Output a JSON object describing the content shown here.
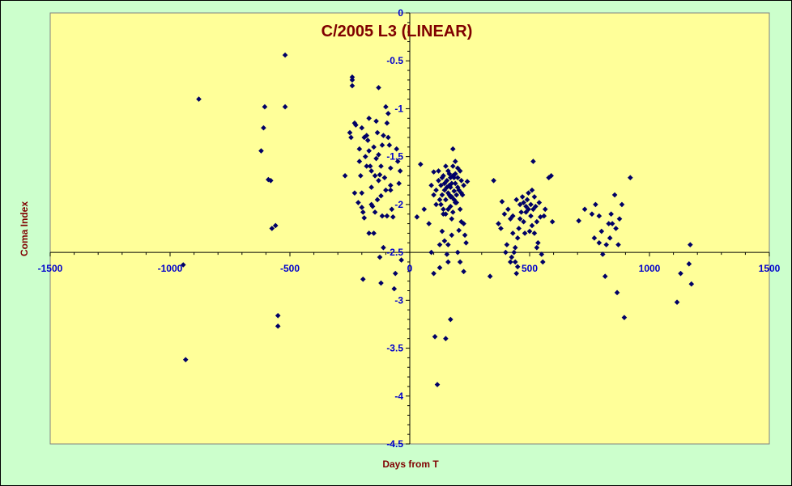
{
  "chart_data": {
    "type": "scatter",
    "title": "C/2005 L3 (LINEAR)",
    "xlabel": "Days from T",
    "ylabel": "Coma Index",
    "xlim": [
      -1500,
      1500
    ],
    "ylim": [
      -4.5,
      0
    ],
    "xticks": [
      -1500,
      -1000,
      -500,
      0,
      500,
      1000,
      1500
    ],
    "xtick_labels": [
      "-1500",
      "-1000",
      "-500",
      "0",
      "500",
      "1000",
      "1500"
    ],
    "yticks": [
      0,
      -0.5,
      -1,
      -1.5,
      -2,
      -2.5,
      -3,
      -3.5,
      -4,
      -4.5
    ],
    "ytick_labels": [
      "0",
      "-0.5",
      "-1",
      "-1.5",
      "-2",
      "-2.5",
      "-3",
      "-3.5",
      "-4",
      "-4.5"
    ],
    "grid": false,
    "legend": "none",
    "colors": {
      "plot_bg": "#ffff99",
      "page_bg": "#ccffcc",
      "marker": "#000066",
      "title": "#800000",
      "ticks": "#0000cc"
    },
    "marker": "diamond",
    "series": [
      {
        "points": [
          [
            -935,
            -3.62
          ],
          [
            -945,
            -2.63
          ],
          [
            -880,
            -0.9
          ],
          [
            -620,
            -1.44
          ],
          [
            -610,
            -1.2
          ],
          [
            -605,
            -0.98
          ],
          [
            -590,
            -1.74
          ],
          [
            -580,
            -1.75
          ],
          [
            -575,
            -2.25
          ],
          [
            -560,
            -2.22
          ],
          [
            -550,
            -3.16
          ],
          [
            -550,
            -3.27
          ],
          [
            -520,
            -0.44
          ],
          [
            -520,
            -0.98
          ],
          [
            -240,
            -0.67
          ],
          [
            -240,
            -0.7
          ],
          [
            -240,
            -0.76
          ],
          [
            -250,
            -1.25
          ],
          [
            -245,
            -1.3
          ],
          [
            -230,
            -1.15
          ],
          [
            -225,
            -1.17
          ],
          [
            -210,
            -1.42
          ],
          [
            -210,
            -1.55
          ],
          [
            -205,
            -1.7
          ],
          [
            -200,
            -1.88
          ],
          [
            -200,
            -2.03
          ],
          [
            -195,
            -2.08
          ],
          [
            -190,
            -2.14
          ],
          [
            -185,
            -1.5
          ],
          [
            -180,
            -1.28
          ],
          [
            -175,
            -1.33
          ],
          [
            -170,
            -1.44
          ],
          [
            -165,
            -1.6
          ],
          [
            -160,
            -1.82
          ],
          [
            -155,
            -2.02
          ],
          [
            -150,
            -2.3
          ],
          [
            -145,
            -2.08
          ],
          [
            -140,
            -1.13
          ],
          [
            -135,
            -1.25
          ],
          [
            -130,
            -1.48
          ],
          [
            -125,
            -1.69
          ],
          [
            -120,
            -1.91
          ],
          [
            -115,
            -2.12
          ],
          [
            -110,
            -2.45
          ],
          [
            -100,
            -0.98
          ],
          [
            -95,
            -1.15
          ],
          [
            -90,
            -1.3
          ],
          [
            -85,
            -1.38
          ],
          [
            -80,
            -1.62
          ],
          [
            -80,
            -1.85
          ],
          [
            -75,
            -2.05
          ],
          [
            -70,
            -2.13
          ],
          [
            -65,
            -2.88
          ],
          [
            -60,
            -2.72
          ],
          [
            -55,
            -1.42
          ],
          [
            -50,
            -1.55
          ],
          [
            -45,
            -1.78
          ],
          [
            -40,
            -1.65
          ],
          [
            -35,
            -2.58
          ],
          [
            -200,
            -1.2
          ],
          [
            -180,
            -1.6
          ],
          [
            -160,
            -1.65
          ],
          [
            -150,
            -1.4
          ],
          [
            -140,
            -1.52
          ],
          [
            -130,
            -1.75
          ],
          [
            -115,
            -1.38
          ],
          [
            -105,
            -1.72
          ],
          [
            -95,
            -2.12
          ],
          [
            -90,
            -1.05
          ],
          [
            -170,
            -2.3
          ],
          [
            -215,
            -1.98
          ],
          [
            -230,
            -1.88
          ],
          [
            -130,
            -0.78
          ],
          [
            -125,
            -2.55
          ],
          [
            -195,
            -2.78
          ],
          [
            -120,
            -2.82
          ],
          [
            -270,
            -1.7
          ],
          [
            -190,
            -1.3
          ],
          [
            -170,
            -1.1
          ],
          [
            -145,
            -1.7
          ],
          [
            -135,
            -1.95
          ],
          [
            -110,
            -1.28
          ],
          [
            -100,
            -1.85
          ],
          [
            -160,
            -2.0
          ],
          [
            -120,
            -1.6
          ],
          [
            -80,
            -1.8
          ],
          [
            30,
            -2.13
          ],
          [
            45,
            -1.58
          ],
          [
            80,
            -2.2
          ],
          [
            90,
            -2.5
          ],
          [
            100,
            -1.66
          ],
          [
            100,
            -2.72
          ],
          [
            105,
            -3.38
          ],
          [
            115,
            -3.88
          ],
          [
            125,
            -2.66
          ],
          [
            130,
            -2.0
          ],
          [
            135,
            -2.28
          ],
          [
            140,
            -2.1
          ],
          [
            145,
            -2.38
          ],
          [
            150,
            -3.4
          ],
          [
            155,
            -2.52
          ],
          [
            160,
            -2.6
          ],
          [
            170,
            -3.2
          ],
          [
            175,
            -2.32
          ],
          [
            200,
            -2.5
          ],
          [
            205,
            -2.27
          ],
          [
            210,
            -2.6
          ],
          [
            215,
            -2.18
          ],
          [
            225,
            -2.7
          ],
          [
            230,
            -2.32
          ],
          [
            180,
            -1.42
          ],
          [
            110,
            -1.85
          ],
          [
            120,
            -1.75
          ],
          [
            125,
            -1.95
          ],
          [
            130,
            -1.8
          ],
          [
            135,
            -1.9
          ],
          [
            140,
            -1.7
          ],
          [
            145,
            -1.85
          ],
          [
            150,
            -1.95
          ],
          [
            155,
            -1.75
          ],
          [
            160,
            -1.88
          ],
          [
            165,
            -1.68
          ],
          [
            170,
            -1.82
          ],
          [
            175,
            -1.92
          ],
          [
            180,
            -1.7
          ],
          [
            185,
            -1.86
          ],
          [
            190,
            -1.78
          ],
          [
            195,
            -1.98
          ],
          [
            200,
            -1.72
          ],
          [
            205,
            -1.85
          ],
          [
            210,
            -1.65
          ],
          [
            215,
            -1.75
          ],
          [
            220,
            -1.9
          ],
          [
            225,
            -1.8
          ],
          [
            150,
            -1.6
          ],
          [
            160,
            -1.65
          ],
          [
            170,
            -1.72
          ],
          [
            180,
            -1.6
          ],
          [
            190,
            -1.68
          ],
          [
            200,
            -1.62
          ],
          [
            170,
            -2.02
          ],
          [
            180,
            -2.08
          ],
          [
            190,
            -1.98
          ],
          [
            160,
            -2.05
          ],
          [
            150,
            -2.1
          ],
          [
            140,
            -2.05
          ],
          [
            185,
            -1.95
          ],
          [
            195,
            -1.9
          ],
          [
            175,
            -1.78
          ],
          [
            165,
            -1.9
          ],
          [
            155,
            -1.82
          ],
          [
            145,
            -1.78
          ],
          [
            135,
            -1.72
          ],
          [
            175,
            -2.15
          ],
          [
            210,
            -2.05
          ],
          [
            225,
            -2.2
          ],
          [
            240,
            -1.76
          ],
          [
            120,
            -1.65
          ],
          [
            110,
            -2.0
          ],
          [
            100,
            -1.9
          ],
          [
            90,
            -1.8
          ],
          [
            60,
            -2.05
          ],
          [
            235,
            -2.4
          ],
          [
            125,
            -2.42
          ],
          [
            160,
            -2.42
          ],
          [
            190,
            -1.55
          ],
          [
            200,
            -1.82
          ],
          [
            215,
            -1.88
          ],
          [
            185,
            -1.72
          ],
          [
            170,
            -1.92
          ],
          [
            165,
            -1.8
          ],
          [
            335,
            -2.75
          ],
          [
            370,
            -2.2
          ],
          [
            385,
            -1.97
          ],
          [
            395,
            -2.1
          ],
          [
            405,
            -2.42
          ],
          [
            410,
            -2.05
          ],
          [
            420,
            -2.15
          ],
          [
            425,
            -2.55
          ],
          [
            430,
            -2.3
          ],
          [
            435,
            -2.5
          ],
          [
            440,
            -2.6
          ],
          [
            445,
            -2.72
          ],
          [
            450,
            -2.35
          ],
          [
            455,
            -2.25
          ],
          [
            460,
            -2.0
          ],
          [
            465,
            -2.08
          ],
          [
            470,
            -1.92
          ],
          [
            475,
            -2.18
          ],
          [
            480,
            -2.3
          ],
          [
            485,
            -2.02
          ],
          [
            490,
            -1.95
          ],
          [
            495,
            -2.05
          ],
          [
            500,
            -2.28
          ],
          [
            505,
            -2.12
          ],
          [
            510,
            -1.85
          ],
          [
            515,
            -1.55
          ],
          [
            520,
            -1.92
          ],
          [
            525,
            -2.02
          ],
          [
            530,
            -2.18
          ],
          [
            535,
            -2.4
          ],
          [
            540,
            -1.98
          ],
          [
            545,
            -2.13
          ],
          [
            550,
            -2.52
          ],
          [
            555,
            -2.6
          ],
          [
            560,
            -2.12
          ],
          [
            565,
            -2.05
          ],
          [
            580,
            -1.72
          ],
          [
            590,
            -1.7
          ],
          [
            595,
            -2.18
          ],
          [
            475,
            -1.98
          ],
          [
            485,
            -2.08
          ],
          [
            495,
            -1.88
          ],
          [
            505,
            -2.0
          ],
          [
            515,
            -2.05
          ],
          [
            460,
            -2.15
          ],
          [
            445,
            -1.95
          ],
          [
            430,
            -2.12
          ],
          [
            350,
            -1.75
          ],
          [
            380,
            -2.25
          ],
          [
            400,
            -2.5
          ],
          [
            420,
            -2.6
          ],
          [
            440,
            -2.45
          ],
          [
            450,
            -2.65
          ],
          [
            510,
            -2.22
          ],
          [
            520,
            -2.3
          ],
          [
            530,
            -2.45
          ],
          [
            705,
            -2.17
          ],
          [
            730,
            -2.05
          ],
          [
            760,
            -2.1
          ],
          [
            770,
            -2.35
          ],
          [
            775,
            -2.0
          ],
          [
            790,
            -2.12
          ],
          [
            800,
            -2.28
          ],
          [
            805,
            -2.52
          ],
          [
            815,
            -2.75
          ],
          [
            820,
            -2.42
          ],
          [
            830,
            -2.2
          ],
          [
            840,
            -2.1
          ],
          [
            845,
            -2.2
          ],
          [
            855,
            -1.9
          ],
          [
            860,
            -2.25
          ],
          [
            865,
            -2.92
          ],
          [
            870,
            -2.42
          ],
          [
            875,
            -2.15
          ],
          [
            885,
            -2.0
          ],
          [
            895,
            -3.18
          ],
          [
            920,
            -1.72
          ],
          [
            790,
            -2.4
          ],
          [
            835,
            -2.35
          ],
          [
            1115,
            -3.02
          ],
          [
            1130,
            -2.72
          ],
          [
            1165,
            -2.62
          ],
          [
            1170,
            -2.42
          ],
          [
            1175,
            -2.83
          ]
        ]
      }
    ]
  }
}
